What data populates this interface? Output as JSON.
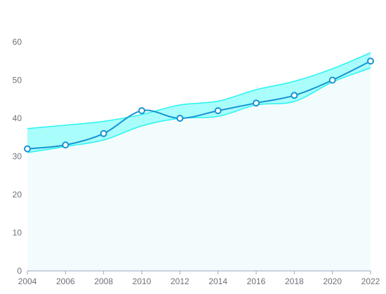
{
  "chart_data": {
    "type": "line",
    "title": "",
    "xlabel": "",
    "ylabel": "",
    "x": [
      "2004",
      "2006",
      "2008",
      "2010",
      "2012",
      "2014",
      "2016",
      "2018",
      "2020",
      "2022"
    ],
    "xlim": [
      2004,
      2022
    ],
    "ylim": [
      0,
      60
    ],
    "yticks": [
      0,
      10,
      20,
      30,
      40,
      50,
      60
    ],
    "grid": false,
    "legend": "none",
    "series": [
      {
        "values": [
          32,
          33,
          36,
          42,
          40,
          42,
          44,
          46,
          50,
          55
        ]
      }
    ],
    "band_upper": [
      37.3,
      38.2,
      39.2,
      41.0,
      43.5,
      44.5,
      47.5,
      49.7,
      53.0,
      57.2
    ],
    "band_lower": [
      31.0,
      32.6,
      34.3,
      38.0,
      40.0,
      40.5,
      43.5,
      44.4,
      49.5,
      53.2
    ],
    "colors": {
      "line": "#1793d1",
      "band_fill": "#6ffbf8",
      "band_stroke": "#26f4f0",
      "area_fill": "#f3fcfd",
      "axis": "#9aa6bd"
    }
  }
}
